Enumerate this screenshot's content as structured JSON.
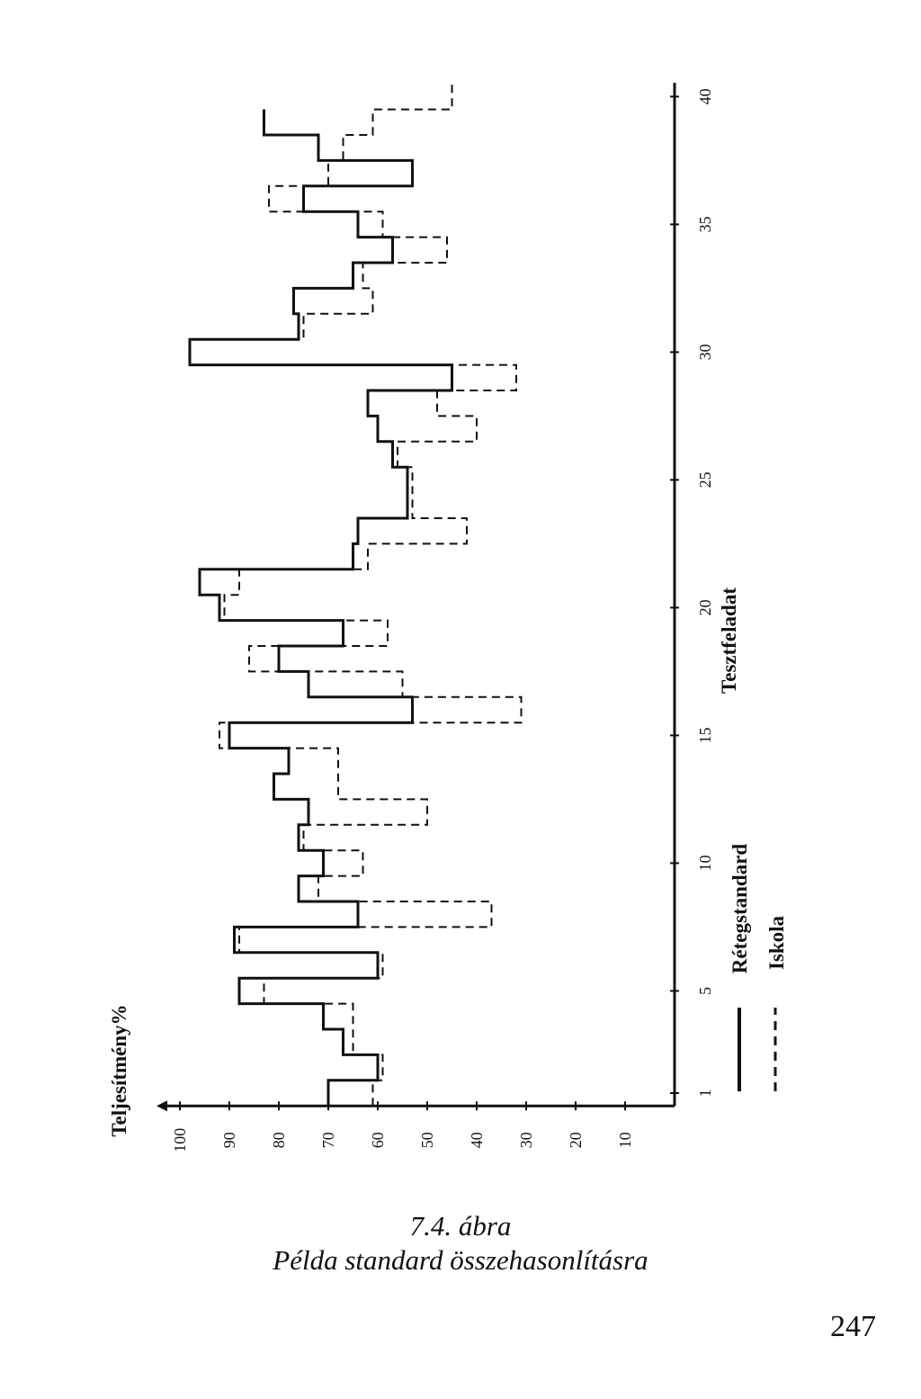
{
  "figure": {
    "caption_number": "7.4. ábra",
    "caption_title": "Példa standard összehasonlításra"
  },
  "page_number": "247",
  "chart_data": {
    "type": "line",
    "title": "",
    "orientation": "rotated 90° counter-clockwise (x axis runs bottom-to-top, y axis runs left-to-right)",
    "xlabel": "Tesztfeladat",
    "ylabel": "Teljesítmény%",
    "xlim": [
      1,
      40
    ],
    "ylim": [
      0,
      100
    ],
    "x_ticks": [
      "1",
      "5",
      "10",
      "15",
      "20",
      "25",
      "30",
      "35",
      "40"
    ],
    "y_ticks": [
      "100",
      "90",
      "80",
      "70",
      "60",
      "50",
      "40",
      "30",
      "20",
      "10"
    ],
    "step": true,
    "legend": {
      "placement": "bottom",
      "entries": [
        {
          "label": "Rétegstandard",
          "style": "solid"
        },
        {
          "label": "Iskola",
          "style": "dashed"
        }
      ]
    },
    "series": [
      {
        "name": "Rétegstandard",
        "style": "solid",
        "x": [
          1,
          2,
          3,
          4,
          5,
          6,
          7,
          8,
          9,
          10,
          11,
          12,
          13,
          14,
          15,
          16,
          17,
          18,
          19,
          20,
          21,
          22,
          23,
          24,
          25,
          26,
          27,
          28,
          29,
          30,
          31,
          32,
          33,
          34,
          35,
          36,
          37,
          38,
          39
        ],
        "values": [
          70,
          60,
          67,
          71,
          88,
          60,
          89,
          64,
          76,
          71,
          76,
          74,
          81,
          78,
          90,
          53,
          74,
          80,
          67,
          92,
          96,
          65,
          64,
          54,
          54,
          57,
          60,
          62,
          45,
          98,
          76,
          77,
          65,
          57,
          64,
          75,
          53,
          72,
          83
        ]
      },
      {
        "name": "Iskola",
        "style": "dashed",
        "x": [
          1,
          2,
          3,
          4,
          5,
          6,
          7,
          8,
          9,
          10,
          11,
          12,
          13,
          14,
          15,
          16,
          17,
          18,
          19,
          20,
          21,
          22,
          23,
          24,
          25,
          26,
          27,
          28,
          29,
          30,
          31,
          32,
          33,
          34,
          35,
          36,
          37,
          38,
          39,
          40
        ],
        "values": [
          61,
          59,
          65,
          65,
          83,
          59,
          88,
          37,
          72,
          63,
          75,
          50,
          68,
          68,
          92,
          31,
          55,
          86,
          58,
          91,
          88,
          62,
          42,
          53,
          53,
          56,
          40,
          48,
          32,
          98,
          75,
          61,
          63,
          46,
          59,
          82,
          70,
          67,
          61,
          45
        ]
      }
    ]
  }
}
